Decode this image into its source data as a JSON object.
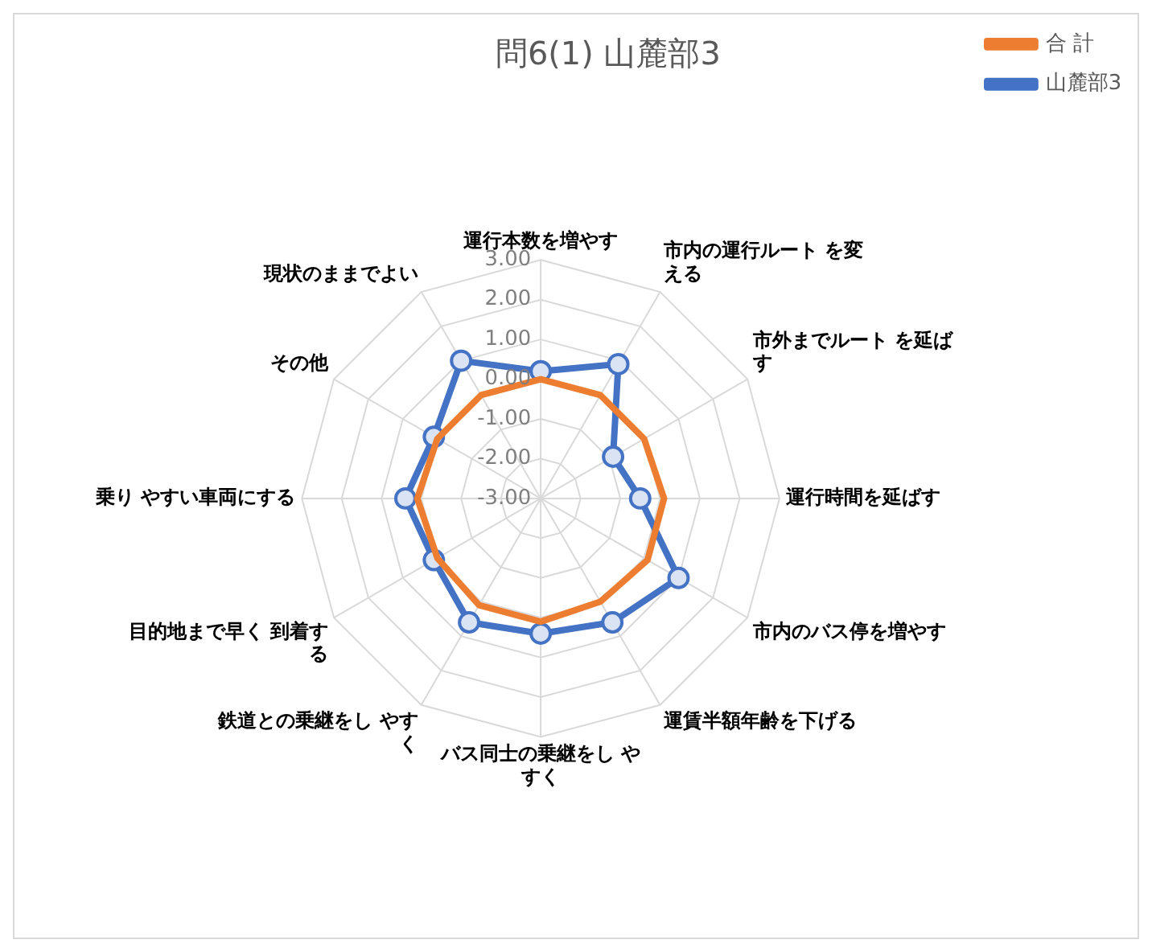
{
  "chart_data": {
    "type": "radar",
    "title": "問6(1) 山麓部3",
    "categories": [
      "運行本数を増やす",
      "市内の運行ルート を変える",
      "市外までルート を延ばす",
      "運行時間を延ばす",
      "市内のバス停を増やす",
      "運賃半額年齢を下げる",
      "バス同士の乗継をし やすく",
      "鉄道との乗継をし やすく",
      "目的地まで早く 到着する",
      "乗り やすい車両にする",
      "その他",
      "現状のままでよい"
    ],
    "series": [
      {
        "name": "合 計",
        "color": "#ed7d31",
        "marker": "none",
        "values": [
          0.0,
          0.0,
          0.0,
          0.1,
          0.1,
          0.0,
          0.1,
          0.1,
          0.0,
          0.1,
          0.0,
          0.0
        ]
      },
      {
        "name": "山麓部3",
        "color": "#4472c4",
        "marker": "circle",
        "values": [
          0.2,
          0.9,
          -0.9,
          -0.5,
          1.0,
          0.6,
          0.4,
          0.6,
          0.1,
          0.4,
          0.1,
          1.0
        ]
      }
    ],
    "ylim": [
      -3,
      3
    ],
    "yticks": [
      {
        "value": -3,
        "label": "-3.00"
      },
      {
        "value": -2,
        "label": "-2.00"
      },
      {
        "value": -1,
        "label": "-1.00"
      },
      {
        "value": 0,
        "label": "0.00"
      },
      {
        "value": 1,
        "label": "1.00"
      },
      {
        "value": 2,
        "label": "2.00"
      },
      {
        "value": 3,
        "label": "3.00"
      }
    ],
    "grid": true,
    "legend": "top right"
  }
}
